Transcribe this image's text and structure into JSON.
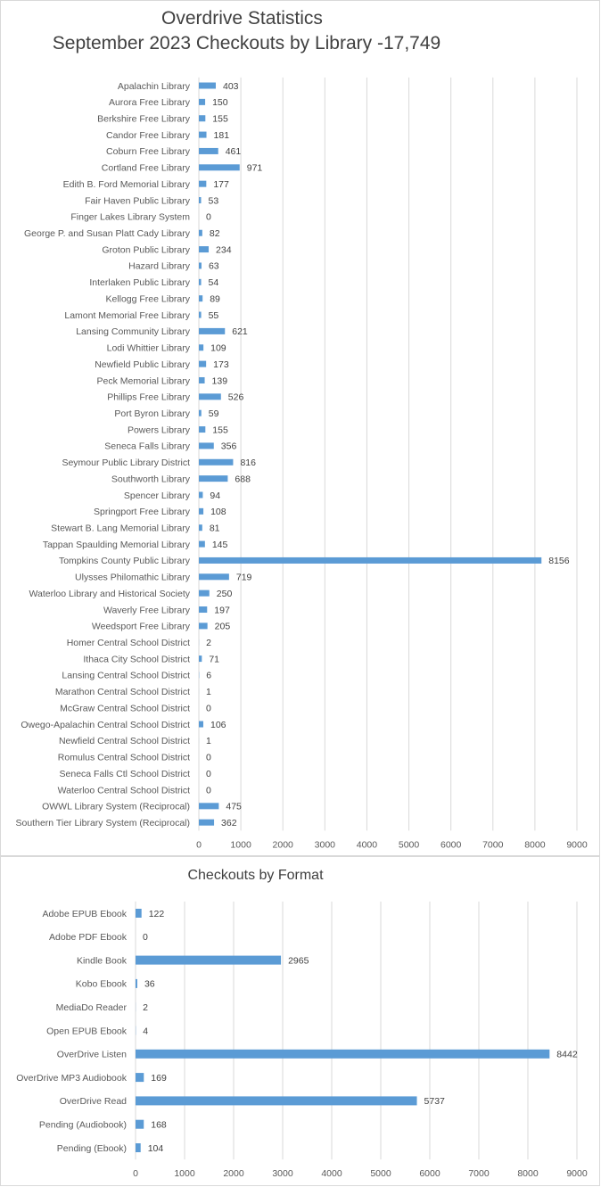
{
  "chart_data": [
    {
      "type": "bar",
      "orientation": "horizontal",
      "title": "Overdrive Statistics",
      "subtitle": "September 2023 Checkouts by Library -17,749",
      "categories": [
        "Apalachin Library",
        "Aurora Free Library",
        "Berkshire Free Library",
        "Candor Free Library",
        "Coburn Free Library",
        "Cortland Free Library",
        "Edith B. Ford Memorial Library",
        "Fair Haven Public Library",
        "Finger Lakes Library System",
        "George P. and Susan Platt Cady Library",
        "Groton Public Library",
        "Hazard Library",
        "Interlaken Public Library",
        "Kellogg Free Library",
        "Lamont Memorial Free Library",
        "Lansing Community Library",
        "Lodi Whittier Library",
        "Newfield Public Library",
        "Peck Memorial Library",
        "Phillips Free Library",
        "Port Byron Library",
        "Powers Library",
        "Seneca Falls Library",
        "Seymour Public Library District",
        "Southworth Library",
        "Spencer Library",
        "Springport Free Library",
        "Stewart B. Lang Memorial Library",
        "Tappan Spaulding Memorial Library",
        "Tompkins County Public Library",
        "Ulysses Philomathic Library",
        "Waterloo Library and Historical Society",
        "Waverly Free Library",
        "Weedsport Free Library",
        "Homer Central School District",
        "Ithaca City School District",
        "Lansing Central School District",
        "Marathon Central School District",
        "McGraw Central School District",
        "Owego-Apalachin Central School District",
        "Newfield Central School District",
        "Romulus Central School District",
        "Seneca Falls Ctl School District",
        "Waterloo Central School District",
        "OWWL Library System (Reciprocal)",
        "Southern Tier Library System (Reciprocal)"
      ],
      "values": [
        403,
        150,
        155,
        181,
        461,
        971,
        177,
        53,
        0,
        82,
        234,
        63,
        54,
        89,
        55,
        621,
        109,
        173,
        139,
        526,
        59,
        155,
        356,
        816,
        688,
        94,
        108,
        81,
        145,
        8156,
        719,
        250,
        197,
        205,
        2,
        71,
        6,
        1,
        0,
        106,
        1,
        0,
        0,
        0,
        475,
        362
      ],
      "xlim": [
        0,
        9000
      ],
      "xticks": [
        0,
        1000,
        2000,
        3000,
        4000,
        5000,
        6000,
        7000,
        8000,
        9000
      ],
      "grid": true,
      "bar_color": "#5b9bd5"
    },
    {
      "type": "bar",
      "orientation": "horizontal",
      "title": "Checkouts by Format",
      "categories": [
        "Adobe EPUB Ebook",
        "Adobe PDF Ebook",
        "Kindle Book",
        "Kobo Ebook",
        "MediaDo Reader",
        "Open EPUB Ebook",
        "OverDrive Listen",
        "OverDrive MP3 Audiobook",
        "OverDrive Read",
        "Pending (Audiobook)",
        "Pending (Ebook)"
      ],
      "values": [
        122,
        0,
        2965,
        36,
        2,
        4,
        8442,
        169,
        5737,
        168,
        104
      ],
      "xlim": [
        0,
        9000
      ],
      "xticks": [
        0,
        1000,
        2000,
        3000,
        4000,
        5000,
        6000,
        7000,
        8000,
        9000
      ],
      "grid": true,
      "bar_color": "#5b9bd5"
    }
  ]
}
